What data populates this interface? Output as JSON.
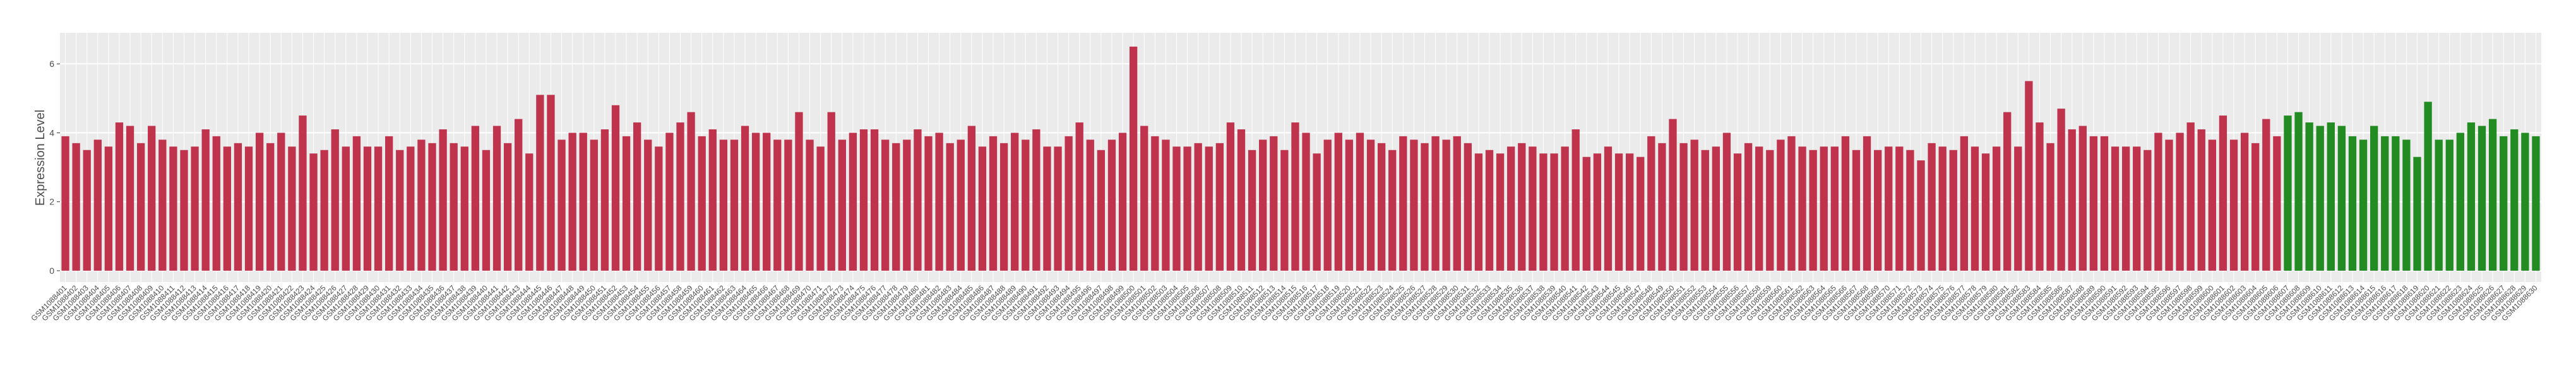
{
  "chart_data": {
    "type": "bar",
    "y_label": "Expression Level",
    "categories": [
      "GSM1088401",
      "GSM1088402",
      "GSM1088403",
      "GSM1088404",
      "GSM1088405",
      "GSM1088406",
      "GSM1088407",
      "GSM1088408",
      "GSM1088409",
      "GSM1088410",
      "GSM1088411",
      "GSM1088412",
      "GSM1088413",
      "GSM1088414",
      "GSM1088415",
      "GSM1088416",
      "GSM1088417",
      "GSM1088418",
      "GSM1088419",
      "GSM1088420",
      "GSM1088421",
      "GSM1088422",
      "GSM1088423",
      "GSM1088424",
      "GSM1088425",
      "GSM1088426",
      "GSM1088427",
      "GSM1088428",
      "GSM1088429",
      "GSM1088430",
      "GSM1088431",
      "GSM1088432",
      "GSM1088433",
      "GSM1088434",
      "GSM1088435",
      "GSM1088436",
      "GSM1088437",
      "GSM1088438",
      "GSM1088439",
      "GSM1088440",
      "GSM1088441",
      "GSM1088442",
      "GSM1088443",
      "GSM1088444",
      "GSM1088445",
      "GSM1088446",
      "GSM1088447",
      "GSM1088448",
      "GSM1088449",
      "GSM1088450",
      "GSM1088451",
      "GSM1088452",
      "GSM1088453",
      "GSM1088454",
      "GSM1088455",
      "GSM1088456",
      "GSM1088457",
      "GSM1088458",
      "GSM1088459",
      "GSM1088460",
      "GSM1088461",
      "GSM1088462",
      "GSM1088463",
      "GSM1088464",
      "GSM1088465",
      "GSM1088466",
      "GSM1088467",
      "GSM1088468",
      "GSM1088469",
      "GSM1088470",
      "GSM1088471",
      "GSM1088472",
      "GSM1088473",
      "GSM1088474",
      "GSM1088475",
      "GSM1088476",
      "GSM1088477",
      "GSM1088478",
      "GSM1088479",
      "GSM1088480",
      "GSM1088481",
      "GSM1088482",
      "GSM1088483",
      "GSM1088484",
      "GSM1088485",
      "GSM1088486",
      "GSM1088487",
      "GSM1088488",
      "GSM1088489",
      "GSM1088490",
      "GSM1088491",
      "GSM1088492",
      "GSM1088493",
      "GSM1088494",
      "GSM1088495",
      "GSM1088496",
      "GSM1088497",
      "GSM1088498",
      "GSM1088499",
      "GSM1088500",
      "GSM1088501",
      "GSM1088502",
      "GSM1088503",
      "GSM1088504",
      "GSM1088505",
      "GSM1088506",
      "GSM1088507",
      "GSM1088508",
      "GSM1088509",
      "GSM1088510",
      "GSM1088511",
      "GSM1088512",
      "GSM1088513",
      "GSM1088514",
      "GSM1088515",
      "GSM1088516",
      "GSM1088517",
      "GSM1088518",
      "GSM1088519",
      "GSM1088520",
      "GSM1088521",
      "GSM1088522",
      "GSM1088523",
      "GSM1088524",
      "GSM1088525",
      "GSM1088526",
      "GSM1088527",
      "GSM1088528",
      "GSM1088529",
      "GSM1088530",
      "GSM1088531",
      "GSM1088532",
      "GSM1088533",
      "GSM1088534",
      "GSM1088535",
      "GSM1088536",
      "GSM1088537",
      "GSM1088538",
      "GSM1088539",
      "GSM1088540",
      "GSM1088541",
      "GSM1088542",
      "GSM1088543",
      "GSM1088544",
      "GSM1088545",
      "GSM1088546",
      "GSM1088547",
      "GSM1088548",
      "GSM1088549",
      "GSM1088550",
      "GSM1088551",
      "GSM1088552",
      "GSM1088553",
      "GSM1088554",
      "GSM1088555",
      "GSM1088556",
      "GSM1088557",
      "GSM1088558",
      "GSM1088559",
      "GSM1088560",
      "GSM1088561",
      "GSM1088562",
      "GSM1088563",
      "GSM1088564",
      "GSM1088565",
      "GSM1088566",
      "GSM1088567",
      "GSM1088568",
      "GSM1088569",
      "GSM1088570",
      "GSM1088571",
      "GSM1088572",
      "GSM1088573",
      "GSM1088574",
      "GSM1088575",
      "GSM1088576",
      "GSM1088577",
      "GSM1088578",
      "GSM1088579",
      "GSM1088580",
      "GSM1088581",
      "GSM1088582",
      "GSM1088583",
      "GSM1088584",
      "GSM1088585",
      "GSM1088586",
      "GSM1088587",
      "GSM1088588",
      "GSM1088589",
      "GSM1088590",
      "GSM1088591",
      "GSM1088592",
      "GSM1088593",
      "GSM1088594",
      "GSM1088595",
      "GSM1088596",
      "GSM1088597",
      "GSM1088598",
      "GSM1088599",
      "GSM1088600",
      "GSM1088601",
      "GSM1088602",
      "GSM1088603",
      "GSM1088604",
      "GSM1088605",
      "GSM1088606",
      "GSM1088607",
      "GSM1088608",
      "GSM1088609",
      "GSM1088610",
      "GSM1088611",
      "GSM1088612",
      "GSM1088613",
      "GSM1088614",
      "GSM1088615",
      "GSM1088616",
      "GSM1088617",
      "GSM1088618",
      "GSM1088619",
      "GSM1088620",
      "GSM1088621",
      "GSM1088622",
      "GSM1088623",
      "GSM1088624",
      "GSM1088625",
      "GSM1088626",
      "GSM1088627",
      "GSM1088628",
      "GSM1088629",
      "GSM1088630"
    ],
    "values": [
      3.9,
      3.7,
      3.5,
      3.8,
      3.6,
      4.3,
      4.2,
      3.7,
      4.2,
      3.8,
      3.6,
      3.5,
      3.6,
      4.1,
      3.9,
      3.6,
      3.7,
      3.6,
      4.0,
      3.7,
      4.0,
      3.6,
      4.5,
      3.4,
      3.5,
      4.1,
      3.6,
      3.9,
      3.6,
      3.6,
      3.9,
      3.5,
      3.6,
      3.8,
      3.7,
      4.1,
      3.7,
      3.6,
      4.2,
      3.5,
      4.2,
      3.7,
      4.4,
      3.4,
      5.1,
      5.1,
      3.8,
      4.0,
      4.0,
      3.8,
      4.1,
      4.8,
      3.9,
      4.3,
      3.8,
      3.6,
      4.0,
      4.3,
      4.6,
      3.9,
      4.1,
      3.8,
      3.8,
      4.2,
      4.0,
      4.0,
      3.8,
      3.8,
      4.6,
      3.8,
      3.6,
      4.6,
      3.8,
      4.0,
      4.1,
      4.1,
      3.8,
      3.7,
      3.8,
      4.1,
      3.9,
      4.0,
      3.7,
      3.8,
      4.2,
      3.6,
      3.9,
      3.7,
      4.0,
      3.8,
      4.1,
      3.6,
      3.6,
      3.9,
      4.3,
      3.8,
      3.5,
      3.8,
      4.0,
      6.5,
      4.2,
      3.9,
      3.8,
      3.6,
      3.6,
      3.7,
      3.6,
      3.7,
      4.3,
      4.1,
      3.5,
      3.8,
      3.9,
      3.5,
      4.3,
      4.0,
      3.4,
      3.8,
      4.0,
      3.8,
      4.0,
      3.8,
      3.7,
      3.5,
      3.9,
      3.8,
      3.7,
      3.9,
      3.8,
      3.9,
      3.7,
      3.4,
      3.5,
      3.4,
      3.6,
      3.7,
      3.6,
      3.4,
      3.4,
      3.6,
      4.1,
      3.3,
      3.4,
      3.6,
      3.4,
      3.4,
      3.3,
      3.9,
      3.7,
      4.4,
      3.7,
      3.8,
      3.5,
      3.6,
      4.0,
      3.4,
      3.7,
      3.6,
      3.5,
      3.8,
      3.9,
      3.6,
      3.5,
      3.6,
      3.6,
      3.9,
      3.5,
      3.9,
      3.5,
      3.6,
      3.6,
      3.5,
      3.2,
      3.7,
      3.6,
      3.5,
      3.9,
      3.6,
      3.4,
      3.6,
      4.6,
      3.6,
      5.5,
      4.3,
      3.7,
      4.7,
      4.1,
      4.2,
      3.9,
      3.9,
      3.6,
      3.6,
      3.6,
      3.5,
      4.0,
      3.8,
      4.0,
      4.3,
      4.1,
      3.8,
      4.5,
      3.8,
      4.0,
      3.7,
      4.4,
      3.9,
      4.5,
      4.6,
      4.3,
      4.2,
      4.3,
      4.2,
      3.9,
      3.8,
      4.2,
      3.9,
      3.9,
      3.8,
      3.3,
      4.9,
      3.8,
      3.8,
      4.0,
      4.3,
      4.2,
      4.4,
      3.9,
      4.1,
      4.0,
      3.9
    ],
    "colors": [
      "#c0334d",
      "#c0334d",
      "#c0334d",
      "#c0334d",
      "#c0334d",
      "#c0334d",
      "#c0334d",
      "#c0334d",
      "#c0334d",
      "#c0334d",
      "#c0334d",
      "#c0334d",
      "#c0334d",
      "#c0334d",
      "#c0334d",
      "#c0334d",
      "#c0334d",
      "#c0334d",
      "#c0334d",
      "#c0334d",
      "#c0334d",
      "#c0334d",
      "#c0334d",
      "#c0334d",
      "#c0334d",
      "#c0334d",
      "#c0334d",
      "#c0334d",
      "#c0334d",
      "#c0334d",
      "#c0334d",
      "#c0334d",
      "#c0334d",
      "#c0334d",
      "#c0334d",
      "#c0334d",
      "#c0334d",
      "#c0334d",
      "#c0334d",
      "#c0334d",
      "#c0334d",
      "#c0334d",
      "#c0334d",
      "#c0334d",
      "#c0334d",
      "#c0334d",
      "#c0334d",
      "#c0334d",
      "#c0334d",
      "#c0334d",
      "#c0334d",
      "#c0334d",
      "#c0334d",
      "#c0334d",
      "#c0334d",
      "#c0334d",
      "#c0334d",
      "#c0334d",
      "#c0334d",
      "#c0334d",
      "#c0334d",
      "#c0334d",
      "#c0334d",
      "#c0334d",
      "#c0334d",
      "#c0334d",
      "#c0334d",
      "#c0334d",
      "#c0334d",
      "#c0334d",
      "#c0334d",
      "#c0334d",
      "#c0334d",
      "#c0334d",
      "#c0334d",
      "#c0334d",
      "#c0334d",
      "#c0334d",
      "#c0334d",
      "#c0334d",
      "#c0334d",
      "#c0334d",
      "#c0334d",
      "#c0334d",
      "#c0334d",
      "#c0334d",
      "#c0334d",
      "#c0334d",
      "#c0334d",
      "#c0334d",
      "#c0334d",
      "#c0334d",
      "#c0334d",
      "#c0334d",
      "#c0334d",
      "#c0334d",
      "#c0334d",
      "#c0334d",
      "#c0334d",
      "#c0334d",
      "#c0334d",
      "#c0334d",
      "#c0334d",
      "#c0334d",
      "#c0334d",
      "#c0334d",
      "#c0334d",
      "#c0334d",
      "#c0334d",
      "#c0334d",
      "#c0334d",
      "#c0334d",
      "#c0334d",
      "#c0334d",
      "#c0334d",
      "#c0334d",
      "#c0334d",
      "#c0334d",
      "#c0334d",
      "#c0334d",
      "#c0334d",
      "#c0334d",
      "#c0334d",
      "#c0334d",
      "#c0334d",
      "#c0334d",
      "#c0334d",
      "#c0334d",
      "#c0334d",
      "#c0334d",
      "#c0334d",
      "#c0334d",
      "#c0334d",
      "#c0334d",
      "#c0334d",
      "#c0334d",
      "#c0334d",
      "#c0334d",
      "#c0334d",
      "#c0334d",
      "#c0334d",
      "#c0334d",
      "#c0334d",
      "#c0334d",
      "#c0334d",
      "#c0334d",
      "#c0334d",
      "#c0334d",
      "#c0334d",
      "#c0334d",
      "#c0334d",
      "#c0334d",
      "#c0334d",
      "#c0334d",
      "#c0334d",
      "#c0334d",
      "#c0334d",
      "#c0334d",
      "#c0334d",
      "#c0334d",
      "#c0334d",
      "#c0334d",
      "#c0334d",
      "#c0334d",
      "#c0334d",
      "#c0334d",
      "#c0334d",
      "#c0334d",
      "#c0334d",
      "#c0334d",
      "#c0334d",
      "#c0334d",
      "#c0334d",
      "#c0334d",
      "#c0334d",
      "#c0334d",
      "#c0334d",
      "#c0334d",
      "#c0334d",
      "#c0334d",
      "#c0334d",
      "#c0334d",
      "#c0334d",
      "#c0334d",
      "#c0334d",
      "#c0334d",
      "#c0334d",
      "#c0334d",
      "#c0334d",
      "#c0334d",
      "#c0334d",
      "#c0334d",
      "#c0334d",
      "#c0334d",
      "#c0334d",
      "#c0334d",
      "#c0334d",
      "#c0334d",
      "#c0334d",
      "#c0334d",
      "#c0334d",
      "#c0334d",
      "#c0334d",
      "#c0334d",
      "#c0334d",
      "#c0334d",
      "#228b22",
      "#228b22",
      "#228b22",
      "#228b22",
      "#228b22",
      "#228b22",
      "#228b22",
      "#228b22",
      "#228b22",
      "#228b22",
      "#228b22",
      "#228b22",
      "#228b22",
      "#228b22",
      "#228b22",
      "#228b22",
      "#228b22",
      "#228b22",
      "#228b22",
      "#228b22",
      "#228b22",
      "#228b22",
      "#228b22",
      "#228b22"
    ],
    "ylim": [
      -0.33,
      6.9
    ],
    "yticks": [
      0,
      2,
      4,
      6
    ],
    "grid": true
  }
}
